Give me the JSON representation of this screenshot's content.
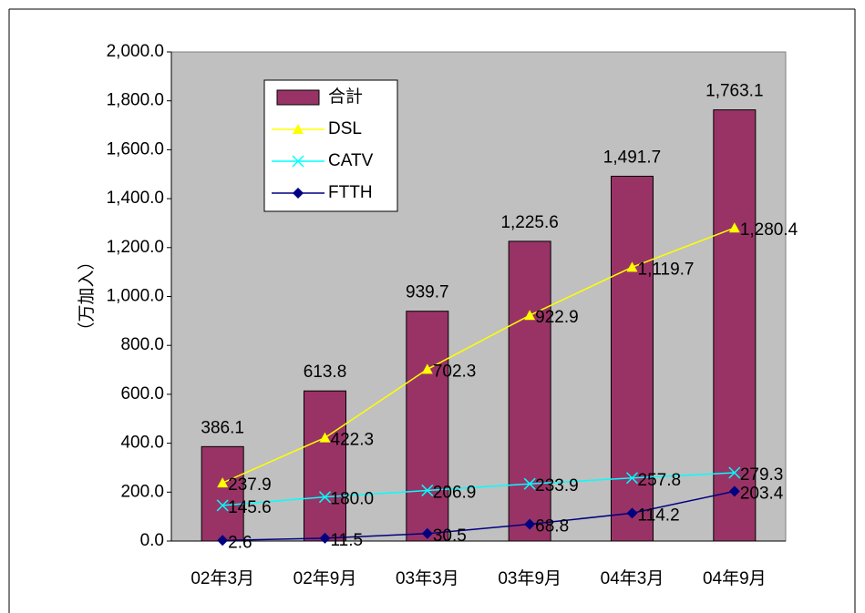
{
  "chart_data": {
    "type": "bar",
    "ylabel": "（万加入）",
    "categories": [
      "02年3月",
      "02年9月",
      "03年3月",
      "03年9月",
      "04年3月",
      "04年9月"
    ],
    "series": [
      {
        "name": "合計",
        "type": "bar",
        "color": "#993366",
        "values": [
          386.1,
          613.8,
          939.7,
          1225.6,
          1491.7,
          1763.1
        ],
        "value_labels": [
          "386.1",
          "613.8",
          "939.7",
          "1,225.6",
          "1,491.7",
          "1,763.1"
        ]
      },
      {
        "name": "DSL",
        "type": "line",
        "marker": "triangle",
        "color": "#FFFF00",
        "values": [
          237.9,
          422.3,
          702.3,
          922.9,
          1119.7,
          1280.4
        ],
        "value_labels": [
          "237.9",
          "422.3",
          "702.3",
          "922.9",
          "1,119.7",
          "1,280.4"
        ]
      },
      {
        "name": "CATV",
        "type": "line",
        "marker": "x",
        "color": "#00FFFF",
        "values": [
          145.6,
          180.0,
          206.9,
          233.9,
          257.8,
          279.3
        ],
        "value_labels": [
          "145.6",
          "180.0",
          "206.9",
          "233.9",
          "257.8",
          "279.3"
        ]
      },
      {
        "name": "FTTH",
        "type": "line",
        "marker": "diamond",
        "color": "#000080",
        "values": [
          2.6,
          11.5,
          30.5,
          68.8,
          114.2,
          203.4
        ],
        "value_labels": [
          "2.6",
          "11.5",
          "30.5",
          "68.8",
          "114.2",
          "203.4"
        ]
      }
    ],
    "ylim": [
      0,
      2000
    ],
    "yticks": [
      {
        "value": 0,
        "label": "0.0"
      },
      {
        "value": 200,
        "label": "200.0"
      },
      {
        "value": 400,
        "label": "400.0"
      },
      {
        "value": 600,
        "label": "600.0"
      },
      {
        "value": 800,
        "label": "800.0"
      },
      {
        "value": 1000,
        "label": "1,000.0"
      },
      {
        "value": 1200,
        "label": "1,200.0"
      },
      {
        "value": 1400,
        "label": "1,400.0"
      },
      {
        "value": 1600,
        "label": "1,600.0"
      },
      {
        "value": 1800,
        "label": "1,800.0"
      },
      {
        "value": 2000,
        "label": "2,000.0"
      }
    ],
    "legend": "top-left",
    "plot_background": "#C0C0C0"
  }
}
